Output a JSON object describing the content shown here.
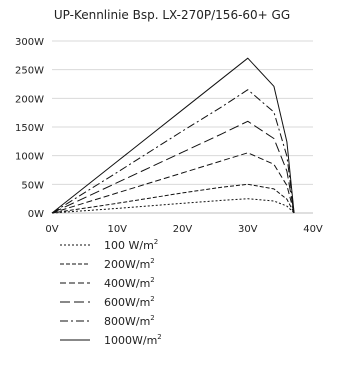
{
  "chart_data": {
    "type": "line",
    "title": "UP-Kennlinie Bsp. LX-270P/156-60+ GG",
    "xlabel": "",
    "ylabel": "",
    "xlim": [
      0,
      40
    ],
    "ylim": [
      0,
      300
    ],
    "x_ticks": [
      0,
      10,
      20,
      30,
      40
    ],
    "x_tick_labels": [
      "0V",
      "10V",
      "20V",
      "30V",
      "40V"
    ],
    "y_ticks": [
      0,
      50,
      100,
      150,
      200,
      250,
      300
    ],
    "y_tick_labels": [
      "0W",
      "50W",
      "100W",
      "150W",
      "200W",
      "250W",
      "300W"
    ],
    "grid": "horizontal",
    "legend_position": "bottom-left",
    "series": [
      {
        "name": "100 W/m²",
        "label_main": "100 W/m",
        "label_sup": "2",
        "dash": "2,2",
        "x": [
          0,
          10,
          20,
          26,
          30,
          34,
          36,
          37.1
        ],
        "y": [
          0,
          8,
          17,
          22,
          25,
          21,
          12,
          0
        ]
      },
      {
        "name": "200W/m²",
        "label_main": "200W/m",
        "label_sup": "2",
        "dash": "4,2",
        "x": [
          0,
          10,
          20,
          26,
          30,
          34,
          36,
          37.1
        ],
        "y": [
          0,
          17,
          35,
          45,
          50,
          42,
          24,
          0
        ]
      },
      {
        "name": "400W/m²",
        "label_main": "400W/m",
        "label_sup": "2",
        "dash": "6,3",
        "x": [
          0,
          10,
          20,
          26,
          30,
          34,
          36,
          37.1
        ],
        "y": [
          0,
          35,
          70,
          91,
          105,
          85,
          48,
          0
        ]
      },
      {
        "name": "600W/m²",
        "label_main": "600W/m",
        "label_sup": "2",
        "dash": "10,4",
        "x": [
          0,
          10,
          20,
          26,
          30,
          34,
          36,
          37.1
        ],
        "y": [
          0,
          53,
          106,
          138,
          160,
          130,
          73,
          0
        ]
      },
      {
        "name": "800W/m²",
        "label_main": "800W/m",
        "label_sup": "2",
        "dash": "8,3,2,3",
        "x": [
          0,
          10,
          20,
          26,
          30,
          34,
          36,
          37.1
        ],
        "y": [
          0,
          71,
          143,
          185,
          215,
          176,
          99,
          0
        ]
      },
      {
        "name": "1000W/m²",
        "label_main": "1000W/m",
        "label_sup": "2",
        "dash": "",
        "x": [
          0,
          10,
          20,
          26,
          30,
          34,
          36,
          37.1
        ],
        "y": [
          0,
          90,
          180,
          234,
          270,
          221,
          124,
          0
        ]
      }
    ]
  }
}
